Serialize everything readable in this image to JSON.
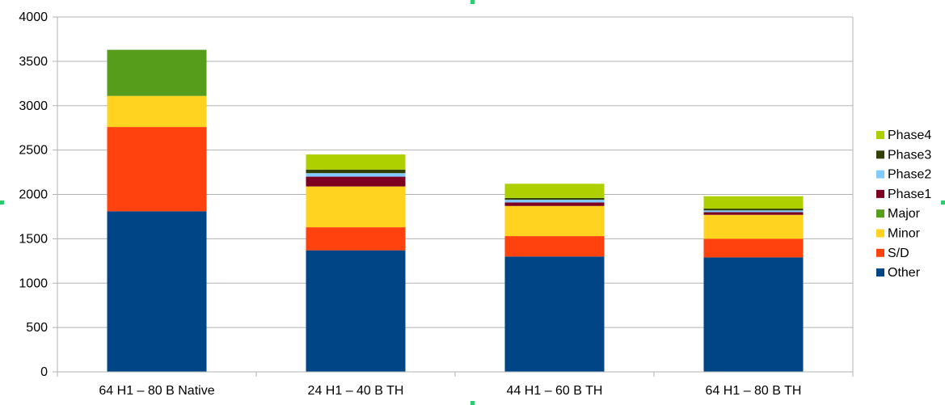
{
  "chart_data": {
    "type": "bar",
    "stacked": true,
    "categories": [
      "64 H1 – 80 B Native",
      "24 H1 – 40 B TH",
      "44 H1 – 60 B TH",
      "64 H1 – 80 B TH"
    ],
    "series": [
      {
        "name": "Other",
        "color": "#004586",
        "values": [
          1810,
          1370,
          1300,
          1290
        ]
      },
      {
        "name": "S/D",
        "color": "#ff420e",
        "values": [
          950,
          260,
          230,
          210
        ]
      },
      {
        "name": "Minor",
        "color": "#ffd320",
        "values": [
          350,
          460,
          340,
          270
        ]
      },
      {
        "name": "Major",
        "color": "#579d1c",
        "values": [
          520,
          0,
          0,
          0
        ]
      },
      {
        "name": "Phase1",
        "color": "#7e0021",
        "values": [
          0,
          110,
          40,
          30
        ]
      },
      {
        "name": "Phase2",
        "color": "#83caff",
        "values": [
          0,
          40,
          30,
          20
        ]
      },
      {
        "name": "Phase3",
        "color": "#314004",
        "values": [
          0,
          40,
          20,
          20
        ]
      },
      {
        "name": "Phase4",
        "color": "#aecf00",
        "values": [
          0,
          170,
          160,
          140
        ]
      }
    ],
    "title": "",
    "xlabel": "",
    "ylabel": "",
    "ylim": [
      0,
      4000
    ],
    "yticks": [
      0,
      500,
      1000,
      1500,
      2000,
      2500,
      3000,
      3500,
      4000
    ],
    "grid": true,
    "legend_position": "right"
  }
}
